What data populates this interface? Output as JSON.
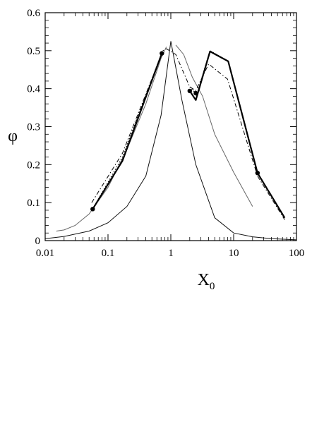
{
  "chart_data": {
    "type": "line",
    "xlabel": "X",
    "xlabel_sub": "0",
    "ylabel": "φ",
    "x_scale": "log",
    "xlim": [
      0.01,
      100
    ],
    "ylim": [
      0,
      0.6
    ],
    "x_ticks": [
      0.01,
      0.1,
      1,
      10,
      100
    ],
    "x_tick_labels": [
      "0.01",
      "0.1",
      "1",
      "10",
      "100"
    ],
    "y_ticks": [
      0,
      0.1,
      0.2,
      0.3,
      0.4,
      0.5,
      0.6
    ],
    "y_tick_labels": [
      "0",
      "0.1",
      "0.2",
      "0.3",
      "0.4",
      "0.5",
      "0.6"
    ],
    "grid": false,
    "series": [
      {
        "style": "thin-solid-peak",
        "x": [
          0.01,
          0.02,
          0.05,
          0.1,
          0.2,
          0.4,
          0.7,
          1.0,
          1.5,
          2.5,
          5,
          10,
          20,
          40,
          100
        ],
        "y": [
          0.005,
          0.011,
          0.025,
          0.047,
          0.09,
          0.17,
          0.33,
          0.525,
          0.37,
          0.2,
          0.06,
          0.02,
          0.01,
          0.005,
          0.002
        ]
      },
      {
        "style": "thin-solid-gray",
        "x": [
          0.015,
          0.02,
          0.03,
          0.05,
          0.1,
          0.2,
          0.4,
          0.7,
          0.85,
          null,
          1.2,
          1.6,
          2.2,
          3.2,
          5,
          10,
          20
        ],
        "y": [
          0.025,
          0.028,
          0.04,
          0.07,
          0.14,
          0.24,
          0.36,
          0.48,
          0.51,
          null,
          0.515,
          0.49,
          0.43,
          0.38,
          0.28,
          0.18,
          0.09
        ]
      },
      {
        "style": "thick-solid",
        "x": [
          0.057,
          0.17,
          0.72,
          null,
          2.0,
          2.5,
          4.2,
          8.2,
          24,
          65
        ],
        "y": [
          0.083,
          0.21,
          0.493,
          null,
          0.394,
          0.37,
          0.498,
          0.472,
          0.178,
          0.06
        ]
      },
      {
        "style": "dotted",
        "x": [
          0.06,
          0.17,
          0.72,
          null,
          2.0,
          2.6,
          4.2,
          8.2,
          24,
          65
        ],
        "y": [
          0.09,
          0.22,
          0.495,
          null,
          0.405,
          0.385,
          0.5,
          0.472,
          0.18,
          0.058
        ]
      },
      {
        "style": "dash-dot",
        "x": [
          0.055,
          0.17,
          0.75,
          0.85,
          1.2,
          2.0,
          2.5,
          4.0,
          8.0,
          24,
          65
        ],
        "y": [
          0.1,
          0.23,
          0.5,
          0.505,
          0.49,
          0.405,
          0.395,
          0.465,
          0.425,
          0.17,
          0.055
        ]
      }
    ],
    "markers": {
      "x": [
        0.057,
        0.72,
        2.0,
        2.5,
        24
      ],
      "y": [
        0.083,
        0.493,
        0.394,
        0.388,
        0.178
      ]
    }
  }
}
